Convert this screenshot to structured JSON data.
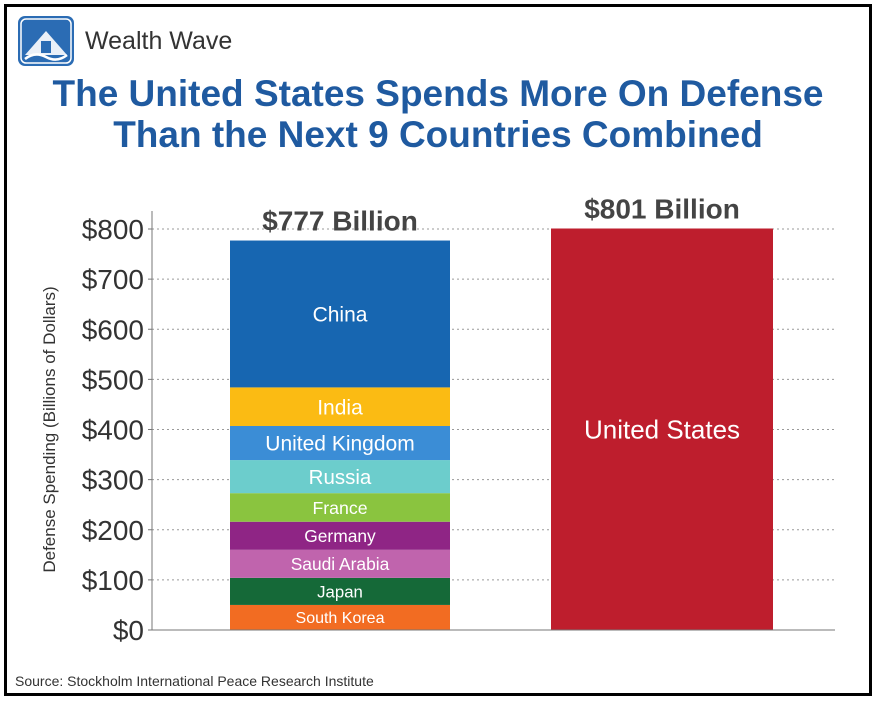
{
  "brand": {
    "name": "Wealth Wave",
    "logo_icon": "wealth-wave-logo-icon"
  },
  "title": {
    "line1": "The United States Spends More On Defense",
    "line2": "Than the Next 9 Countries Combined"
  },
  "source": "Source: Stockholm International Peace Research Institute",
  "chart_data": {
    "type": "bar",
    "stacked": true,
    "ylabel": "Defense Spending (Billions of Dollars)",
    "ylim": [
      0,
      800
    ],
    "yticks": [
      0,
      100,
      200,
      300,
      400,
      500,
      600,
      700,
      800
    ],
    "ytick_labels": [
      "$0",
      "$100",
      "$200",
      "$300",
      "$400",
      "$500",
      "$600",
      "$700",
      "$800"
    ],
    "grid": true,
    "bars": [
      {
        "total_label": "$777 Billion",
        "segments": [
          {
            "name": "South Korea",
            "value": 50,
            "color": "#f26c22"
          },
          {
            "name": "Japan",
            "value": 54,
            "color": "#156938"
          },
          {
            "name": "Saudi Arabia",
            "value": 56,
            "color": "#c064ad"
          },
          {
            "name": "Germany",
            "value": 56,
            "color": "#8f2585"
          },
          {
            "name": "France",
            "value": 57,
            "color": "#8ac43f"
          },
          {
            "name": "Russia",
            "value": 66,
            "color": "#6ccdcc"
          },
          {
            "name": "United Kingdom",
            "value": 68,
            "color": "#3b8dd6"
          },
          {
            "name": "India",
            "value": 77,
            "color": "#fbbb13"
          },
          {
            "name": "China",
            "value": 293,
            "color": "#1766b1"
          }
        ]
      },
      {
        "total_label": "$801 Billion",
        "segments": [
          {
            "name": "United States",
            "value": 801,
            "color": "#be1e2d"
          }
        ]
      }
    ]
  }
}
